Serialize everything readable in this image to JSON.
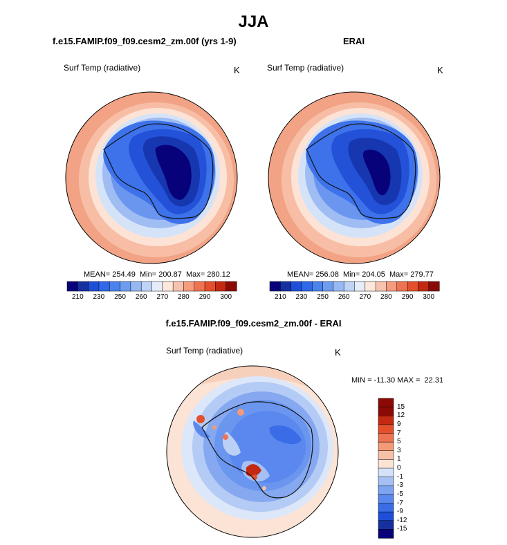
{
  "figure": {
    "title": "JJA",
    "panel_left_title": "f.e15.FAMIP.f09_f09.cesm2_zm.00f (yrs 1-9)",
    "panel_right_title": "ERAI",
    "panel_diff_title": "f.e15.FAMIP.f09_f09.cesm2_zm.00f - ERAI",
    "variable": "Surf Temp (radiative)",
    "units": "K"
  },
  "colors": {
    "abs_scale": [
      "#08027a",
      "#1730a0",
      "#1f4fd8",
      "#2f68e8",
      "#4a82ee",
      "#6d9cf0",
      "#96b8f3",
      "#bfd3f7",
      "#e5edfb",
      "#fde7dc",
      "#f8c3ae",
      "#f59c7f",
      "#ee7350",
      "#e4502c",
      "#c42a12",
      "#8b0a05"
    ],
    "diff_scale": [
      "#08027a",
      "#1730a0",
      "#1f4fd8",
      "#3a6ce8",
      "#5a88ee",
      "#7ea3f1",
      "#a6c0f4",
      "#d3e1f9",
      "#fbe3d6",
      "#f7c1a7",
      "#f39a77",
      "#ee7350",
      "#e4502c",
      "#c42a12",
      "#8b0a05"
    ]
  },
  "chart_data": [
    {
      "type": "heatmap",
      "projection": "south polar stereographic",
      "panel": "model",
      "title": "f.e15.FAMIP.f09_f09.cesm2_zm.00f (yrs 1-9)",
      "variable": "Surf Temp (radiative)",
      "units": "K",
      "stats": {
        "mean": 254.49,
        "min": 200.87,
        "max": 280.12
      },
      "stats_text": "MEAN= 254.49  Min= 200.87  Max= 280.12",
      "colorbar_ticks": [
        "210",
        "230",
        "250",
        "260",
        "270",
        "280",
        "290",
        "300"
      ]
    },
    {
      "type": "heatmap",
      "projection": "south polar stereographic",
      "panel": "reanalysis",
      "title": "ERAI",
      "variable": "Surf Temp (radiative)",
      "units": "K",
      "stats": {
        "mean": 256.08,
        "min": 204.05,
        "max": 279.77
      },
      "stats_text": "MEAN= 256.08  Min= 204.05  Max= 279.77",
      "colorbar_ticks": [
        "210",
        "230",
        "250",
        "260",
        "270",
        "280",
        "290",
        "300"
      ]
    },
    {
      "type": "heatmap",
      "projection": "south polar stereographic",
      "panel": "difference",
      "title": "f.e15.FAMIP.f09_f09.cesm2_zm.00f - ERAI",
      "variable": "Surf Temp (radiative)",
      "units": "K",
      "stats": {
        "min": -11.3,
        "max": 22.31
      },
      "stats_text": "MIN = -11.30 MAX =  22.31",
      "colorbar_ticks": [
        "15",
        "12",
        "9",
        "7",
        "5",
        "3",
        "1",
        "0",
        "-1",
        "-3",
        "-5",
        "-7",
        "-9",
        "-12",
        "-15"
      ]
    }
  ]
}
